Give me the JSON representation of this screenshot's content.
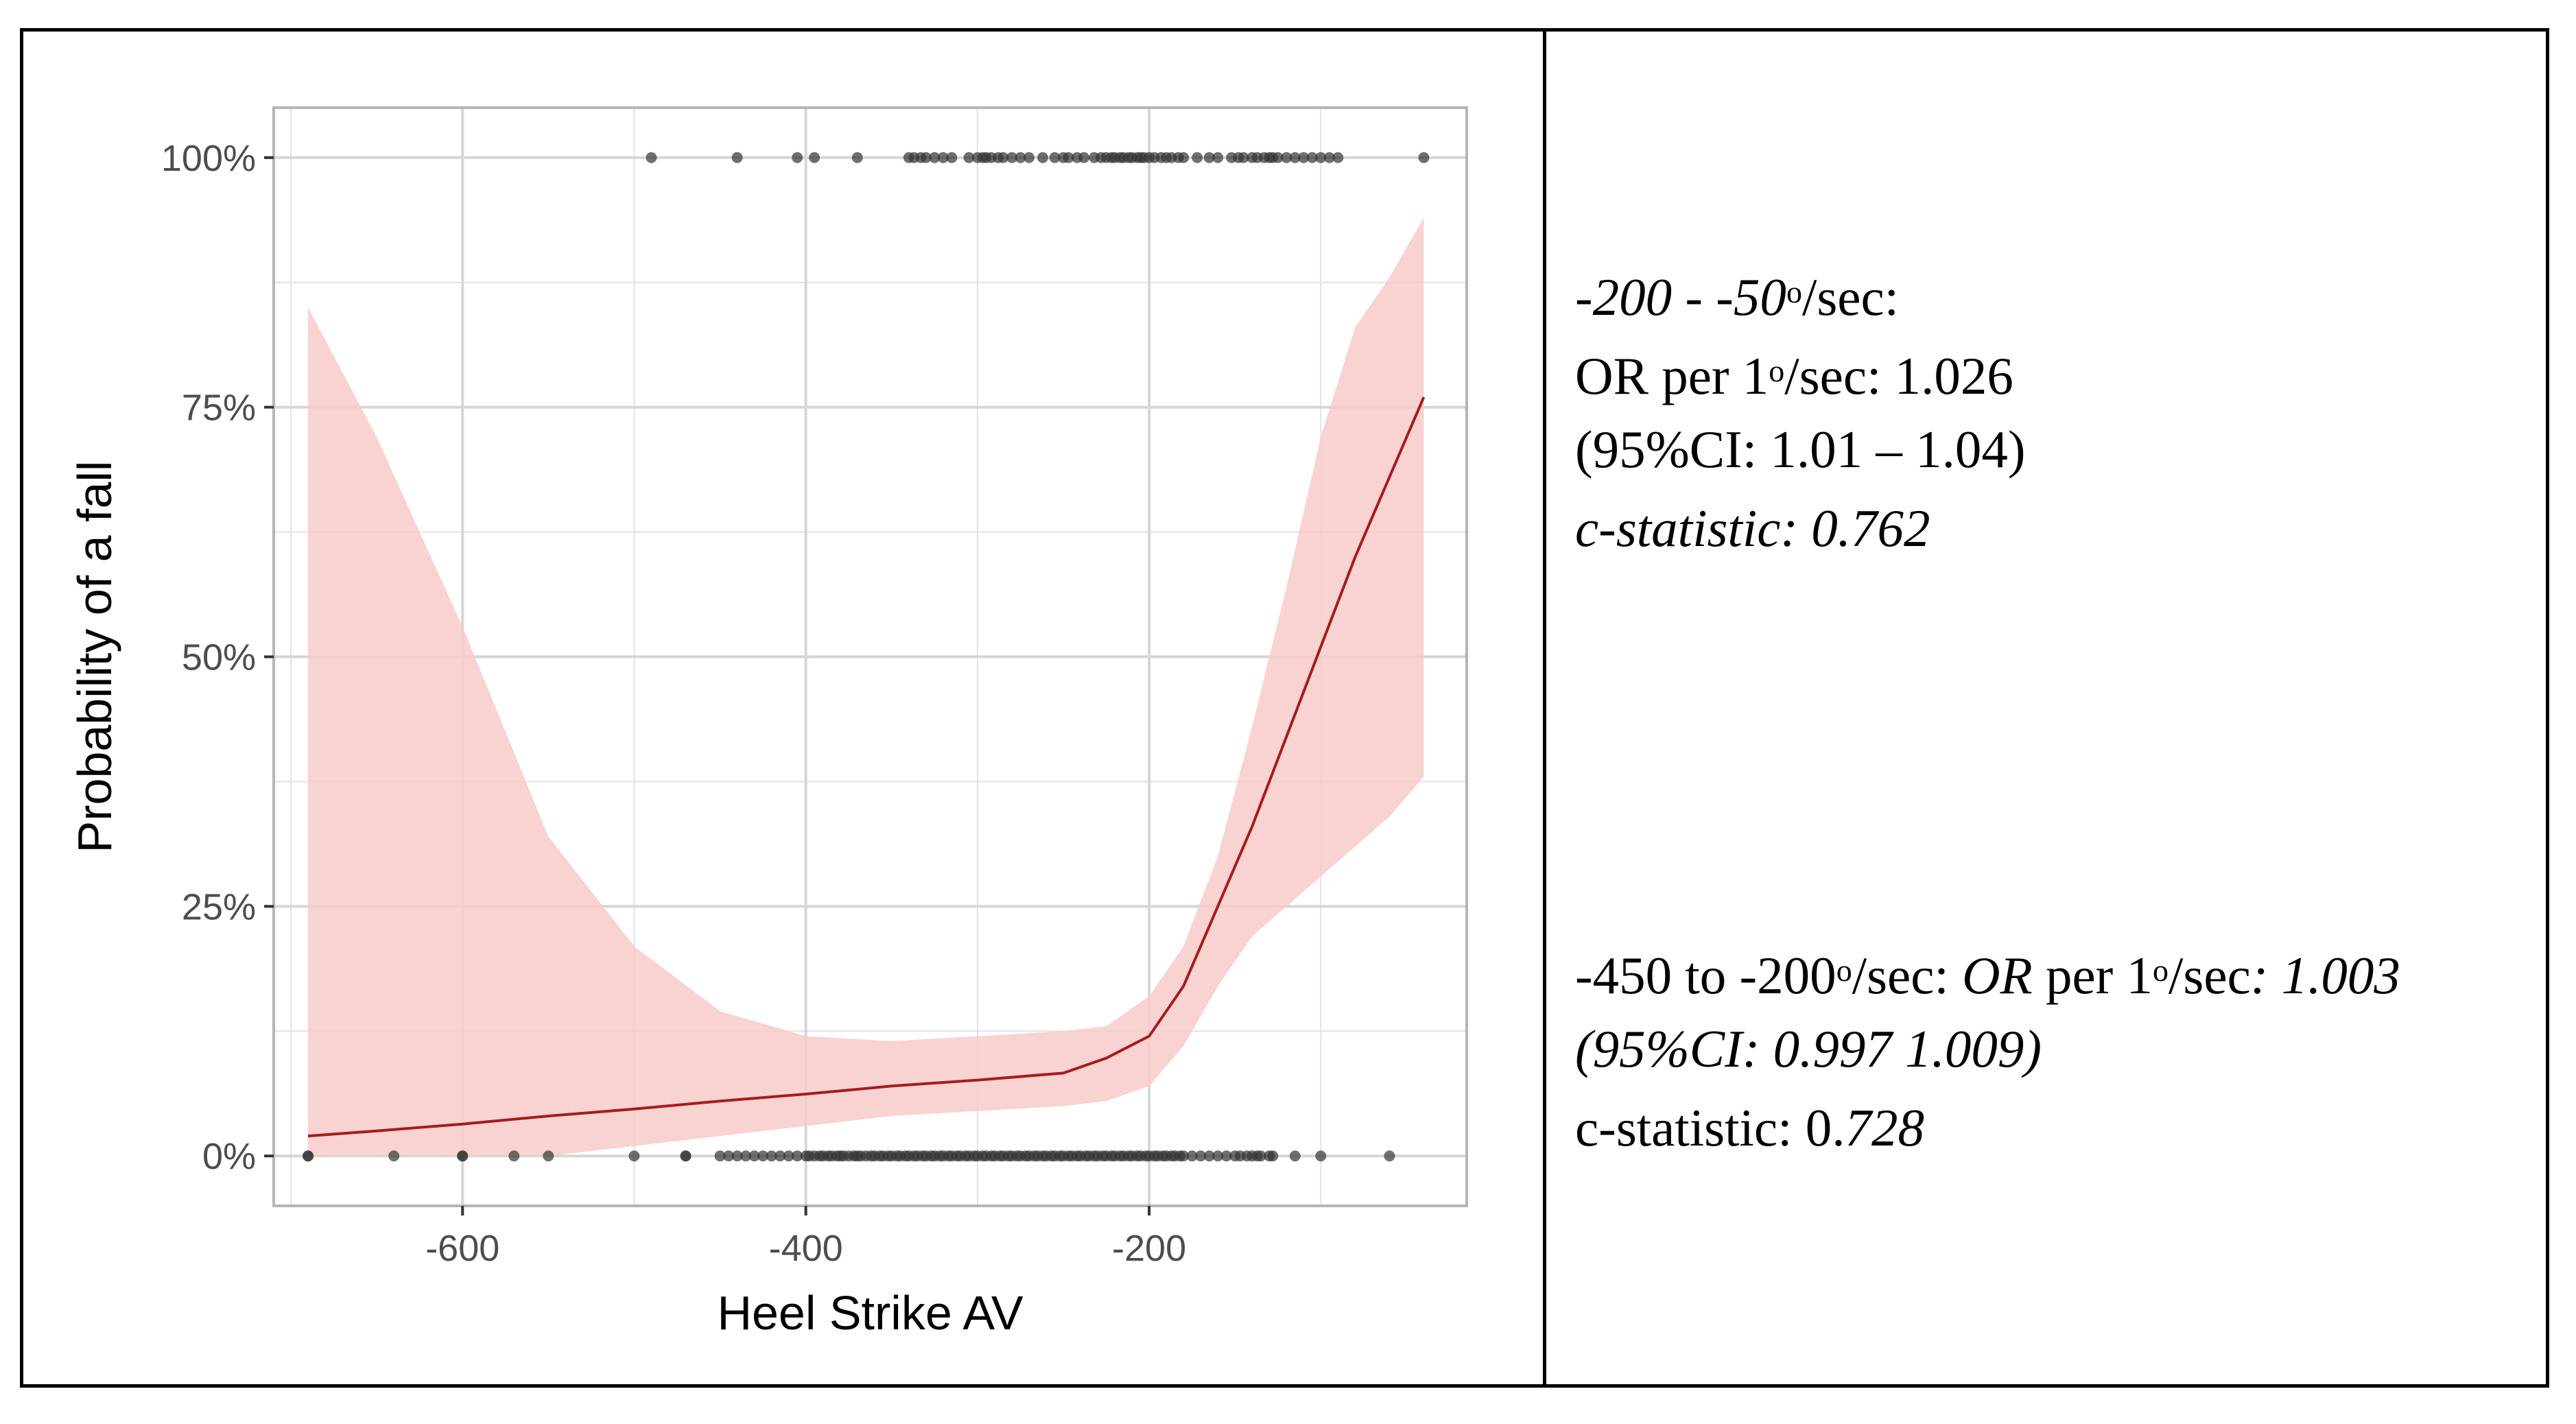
{
  "chart_data": {
    "type": "line",
    "xlabel": "Heel Strike AV",
    "ylabel": "Probability of a fall",
    "xlim": [
      -710,
      -15
    ],
    "ylim": [
      -0.05,
      1.05
    ],
    "x_ticks": [
      -600,
      -400,
      -200
    ],
    "x_tick_labels": [
      "-600",
      "-400",
      "-200"
    ],
    "y_ticks": [
      0,
      0.25,
      0.5,
      0.75,
      1.0
    ],
    "y_tick_labels": [
      "0%",
      "25%",
      "50%",
      "75%",
      "100%"
    ],
    "grid": true,
    "legend": "none",
    "colors": {
      "line": "#a61c1c",
      "band": "#f8caca",
      "points": "#333333",
      "grid": "#e3e3e3",
      "panel_border": "#b5b5b5"
    },
    "fit": {
      "x": [
        -690,
        -650,
        -600,
        -550,
        -500,
        -450,
        -400,
        -350,
        -300,
        -250,
        -225,
        -200,
        -180,
        -160,
        -140,
        -120,
        -100,
        -80,
        -60,
        -40
      ],
      "y": [
        0.02,
        0.025,
        0.032,
        0.04,
        0.047,
        0.055,
        0.062,
        0.07,
        0.076,
        0.083,
        0.098,
        0.12,
        0.17,
        0.25,
        0.33,
        0.42,
        0.51,
        0.6,
        0.68,
        0.76
      ],
      "lower": [
        0.0,
        0.0,
        0.0,
        0.0,
        0.01,
        0.02,
        0.03,
        0.04,
        0.045,
        0.05,
        0.055,
        0.07,
        0.11,
        0.17,
        0.22,
        0.25,
        0.28,
        0.31,
        0.34,
        0.38
      ],
      "upper": [
        0.85,
        0.72,
        0.53,
        0.32,
        0.21,
        0.145,
        0.12,
        0.115,
        0.12,
        0.125,
        0.13,
        0.16,
        0.21,
        0.3,
        0.43,
        0.57,
        0.72,
        0.83,
        0.88,
        0.94
      ]
    },
    "points": {
      "y1_x": [
        -490,
        -440,
        -405,
        -395,
        -370,
        -340,
        -337,
        -333,
        -330,
        -325,
        -320,
        -315,
        -305,
        -300,
        -297,
        -295,
        -292,
        -288,
        -285,
        -280,
        -275,
        -270,
        -262,
        -255,
        -250,
        -247,
        -242,
        -238,
        -232,
        -228,
        -225,
        -222,
        -220,
        -217,
        -215,
        -212,
        -210,
        -207,
        -205,
        -203,
        -200,
        -197,
        -193,
        -190,
        -187,
        -183,
        -180,
        -172,
        -165,
        -160,
        -152,
        -148,
        -145,
        -140,
        -137,
        -133,
        -130,
        -128,
        -125,
        -120,
        -115,
        -110,
        -105,
        -100,
        -95,
        -90,
        -40
      ],
      "y0_x": [
        -690,
        -690,
        -640,
        -600,
        -600,
        -570,
        -550,
        -500,
        -470,
        -470,
        -450,
        -445,
        -440,
        -435,
        -430,
        -425,
        -420,
        -415,
        -410,
        -405,
        -400,
        -398,
        -395,
        -392,
        -390,
        -387,
        -385,
        -382,
        -380,
        -378,
        -375,
        -372,
        -370,
        -368,
        -365,
        -362,
        -360,
        -357,
        -355,
        -352,
        -350,
        -347,
        -345,
        -342,
        -340,
        -337,
        -335,
        -332,
        -330,
        -327,
        -325,
        -322,
        -320,
        -317,
        -315,
        -312,
        -310,
        -307,
        -305,
        -302,
        -300,
        -297,
        -295,
        -292,
        -290,
        -287,
        -285,
        -282,
        -280,
        -277,
        -275,
        -272,
        -270,
        -267,
        -265,
        -262,
        -260,
        -257,
        -255,
        -252,
        -250,
        -247,
        -245,
        -242,
        -240,
        -237,
        -235,
        -232,
        -230,
        -227,
        -225,
        -222,
        -220,
        -217,
        -215,
        -212,
        -210,
        -207,
        -205,
        -202,
        -200,
        -197,
        -195,
        -192,
        -190,
        -187,
        -185,
        -182,
        -180,
        -175,
        -170,
        -165,
        -160,
        -155,
        -150,
        -147,
        -143,
        -140,
        -137,
        -135,
        -130,
        -128,
        -115,
        -100,
        -60
      ]
    }
  },
  "annotations": {
    "block1": {
      "line1_range": "-200 - -50",
      "line1_deg": "o",
      "line1_unit": "/sec:",
      "line2_a": "OR per 1",
      "line2_deg": "o",
      "line2_b": "/sec: 1.026",
      "line3": "(95%CI: 1.01 – 1.04)",
      "line4": "c-statistic: 0.762"
    },
    "block2": {
      "line1_a": "-450 to -200",
      "line1_deg": "o",
      "line1_b": "/sec: ",
      "line1_or": "OR",
      "line1_c": " per 1",
      "line1_deg2": "o",
      "line1_d": "/sec",
      "line1_e": ": 1.003",
      "line2": "(95%CI: 0.997 1.009)",
      "line3_a": "c-statistic: 0.",
      "line3_b": "728"
    }
  }
}
